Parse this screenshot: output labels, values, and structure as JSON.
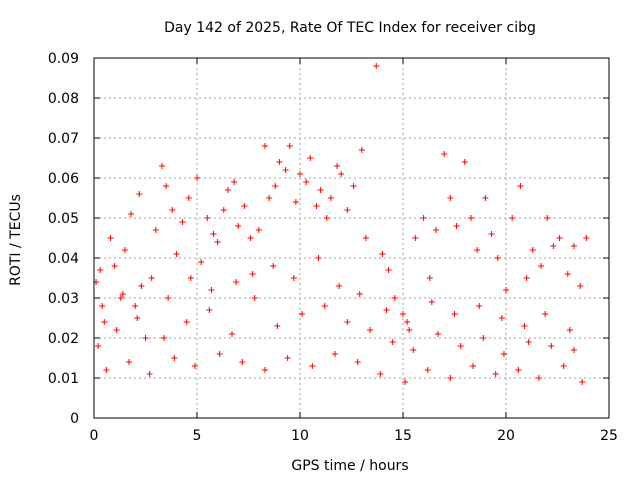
{
  "chart_data": {
    "type": "scatter",
    "title": "Day 142 of 2025, Rate Of TEC Index for receiver cibg",
    "xlabel": "GPS time / hours",
    "ylabel": "ROTI / TECUs",
    "xlim": [
      0,
      25
    ],
    "ylim": [
      0,
      0.09
    ],
    "x_ticks": [
      0,
      5,
      10,
      15,
      20,
      25
    ],
    "y_ticks": [
      0,
      0.01,
      0.02,
      0.03,
      0.04,
      0.05,
      0.06,
      0.07,
      0.08,
      0.09
    ],
    "x_tick_labels": [
      "0",
      "5",
      "10",
      "15",
      "20",
      "25"
    ],
    "y_tick_labels": [
      "0",
      "0.01",
      "0.02",
      "0.03",
      "0.04",
      "0.05",
      "0.06",
      "0.07",
      "0.08",
      "0.09"
    ],
    "grid": true,
    "marker": "+",
    "color": "#ff0000",
    "series": [
      {
        "x": [
          0.1,
          0.3,
          0.5,
          0.8,
          1.0,
          1.3,
          1.5,
          1.8,
          2.0,
          2.2,
          2.5,
          2.8,
          3.0,
          3.3,
          3.5,
          3.8,
          4.0,
          4.3,
          4.6,
          5.0,
          5.2,
          5.5,
          5.8,
          6.0,
          6.3,
          6.5,
          6.8,
          7.0,
          7.3,
          7.6,
          8.0,
          8.3,
          8.5,
          8.8,
          9.0,
          9.3,
          9.5,
          9.8,
          10.0,
          10.3,
          10.5,
          10.8,
          11.0,
          11.3,
          11.5,
          11.8,
          12.0,
          12.3,
          12.6,
          13.0,
          13.2,
          13.7,
          14.0,
          14.3,
          14.6,
          15.0,
          15.3,
          15.6,
          16.0,
          16.3,
          16.6,
          17.0,
          17.3,
          17.6,
          18.0,
          18.3,
          18.6,
          19.0,
          19.3,
          19.6,
          20.0,
          20.3,
          20.7,
          21.0,
          21.3,
          21.7,
          22.0,
          22.3,
          22.6,
          23.0,
          23.3,
          23.6,
          23.9,
          0.2,
          1.1,
          2.1,
          3.4,
          4.5,
          5.6,
          6.7,
          7.8,
          8.9,
          10.1,
          11.2,
          12.3,
          13.4,
          14.5,
          15.5,
          16.7,
          17.8,
          18.9,
          19.9,
          21.1,
          22.2,
          23.3,
          0.6,
          1.7,
          2.7,
          3.9,
          4.9,
          6.1,
          7.2,
          8.3,
          9.4,
          10.6,
          11.7,
          12.8,
          13.9,
          15.1,
          16.2,
          17.3,
          18.4,
          19.5,
          20.6,
          21.6,
          22.8,
          23.7,
          0.4,
          1.4,
          2.3,
          3.6,
          4.7,
          5.7,
          6.9,
          7.7,
          8.7,
          9.7,
          10.9,
          11.9,
          12.9,
          14.2,
          15.2,
          16.4,
          17.5,
          18.7,
          19.8,
          20.9,
          21.9,
          23.1
        ],
        "y": [
          0.034,
          0.037,
          0.024,
          0.045,
          0.038,
          0.03,
          0.042,
          0.051,
          0.028,
          0.056,
          0.02,
          0.035,
          0.047,
          0.063,
          0.058,
          0.052,
          0.041,
          0.049,
          0.055,
          0.06,
          0.039,
          0.05,
          0.046,
          0.044,
          0.052,
          0.057,
          0.059,
          0.048,
          0.053,
          0.045,
          0.047,
          0.068,
          0.055,
          0.058,
          0.064,
          0.062,
          0.068,
          0.054,
          0.061,
          0.059,
          0.065,
          0.053,
          0.057,
          0.05,
          0.055,
          0.063,
          0.061,
          0.052,
          0.058,
          0.067,
          0.045,
          0.088,
          0.041,
          0.037,
          0.03,
          0.026,
          0.022,
          0.045,
          0.05,
          0.035,
          0.047,
          0.066,
          0.055,
          0.048,
          0.064,
          0.05,
          0.042,
          0.055,
          0.046,
          0.04,
          0.032,
          0.05,
          0.058,
          0.035,
          0.042,
          0.038,
          0.05,
          0.043,
          0.045,
          0.036,
          0.043,
          0.033,
          0.045,
          0.018,
          0.022,
          0.025,
          0.02,
          0.024,
          0.027,
          0.021,
          0.03,
          0.023,
          0.026,
          0.028,
          0.024,
          0.022,
          0.019,
          0.017,
          0.021,
          0.018,
          0.02,
          0.016,
          0.019,
          0.018,
          0.017,
          0.012,
          0.014,
          0.011,
          0.015,
          0.013,
          0.016,
          0.014,
          0.012,
          0.015,
          0.013,
          0.016,
          0.014,
          0.011,
          0.009,
          0.012,
          0.01,
          0.013,
          0.011,
          0.012,
          0.01,
          0.013,
          0.009,
          0.028,
          0.031,
          0.033,
          0.03,
          0.035,
          0.032,
          0.034,
          0.036,
          0.038,
          0.035,
          0.04,
          0.033,
          0.031,
          0.027,
          0.024,
          0.029,
          0.026,
          0.028,
          0.025,
          0.023,
          0.026,
          0.022
        ]
      }
    ]
  }
}
